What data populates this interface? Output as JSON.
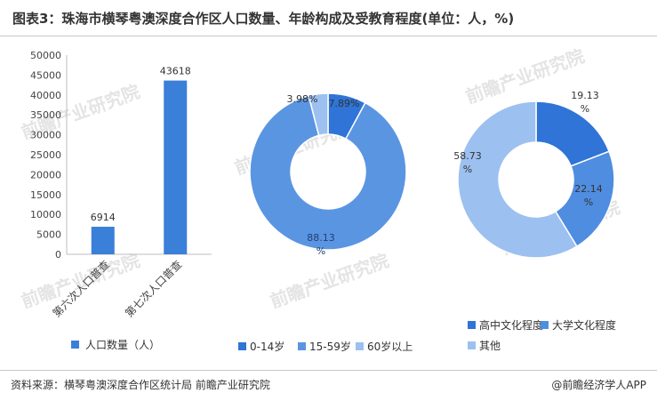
{
  "title": "图表3：珠海市横琴粤澳深度合作区人口数量、年龄构成及受教育程度(单位：人，%)",
  "footer": {
    "source": "资料来源：横琴粤澳深度合作区统计局 前瞻产业研究院",
    "brand": "@前瞻经济学人APP"
  },
  "watermark": "前瞻产业研究院",
  "colors": {
    "bar": "#3a7fd8",
    "age_0_14": "#2f74d6",
    "age_15_59": "#5a95e2",
    "age_60_plus": "#9cc0f0",
    "edu_high": "#2f74d6",
    "edu_college": "#4f8de0",
    "edu_other": "#9cc0f0"
  },
  "chart_data": [
    {
      "type": "bar",
      "categories": [
        "第六次人口普查",
        "第七次人口普查"
      ],
      "series": [
        {
          "name": "人口数量（人）",
          "values": [
            6914,
            43618
          ]
        }
      ],
      "data_labels": [
        "6914",
        "43618"
      ],
      "ylim": [
        0,
        50000
      ],
      "yticks": [
        0,
        5000,
        10000,
        15000,
        20000,
        25000,
        30000,
        35000,
        40000,
        45000,
        50000
      ],
      "legend": "bottom"
    },
    {
      "type": "pie",
      "labels": [
        "0-14岁",
        "15-59岁",
        "60岁以上"
      ],
      "values": [
        7.89,
        88.13,
        3.98
      ],
      "data_labels": [
        "7.89%",
        "88.13%",
        "3.98%"
      ],
      "legend": "bottom"
    },
    {
      "type": "pie",
      "labels": [
        "高中文化程度",
        "大学文化程度",
        "其他"
      ],
      "values": [
        19.13,
        22.14,
        58.73
      ],
      "data_labels": [
        "19.13%",
        "22.14%",
        "58.73%"
      ],
      "legend": "bottom"
    }
  ]
}
